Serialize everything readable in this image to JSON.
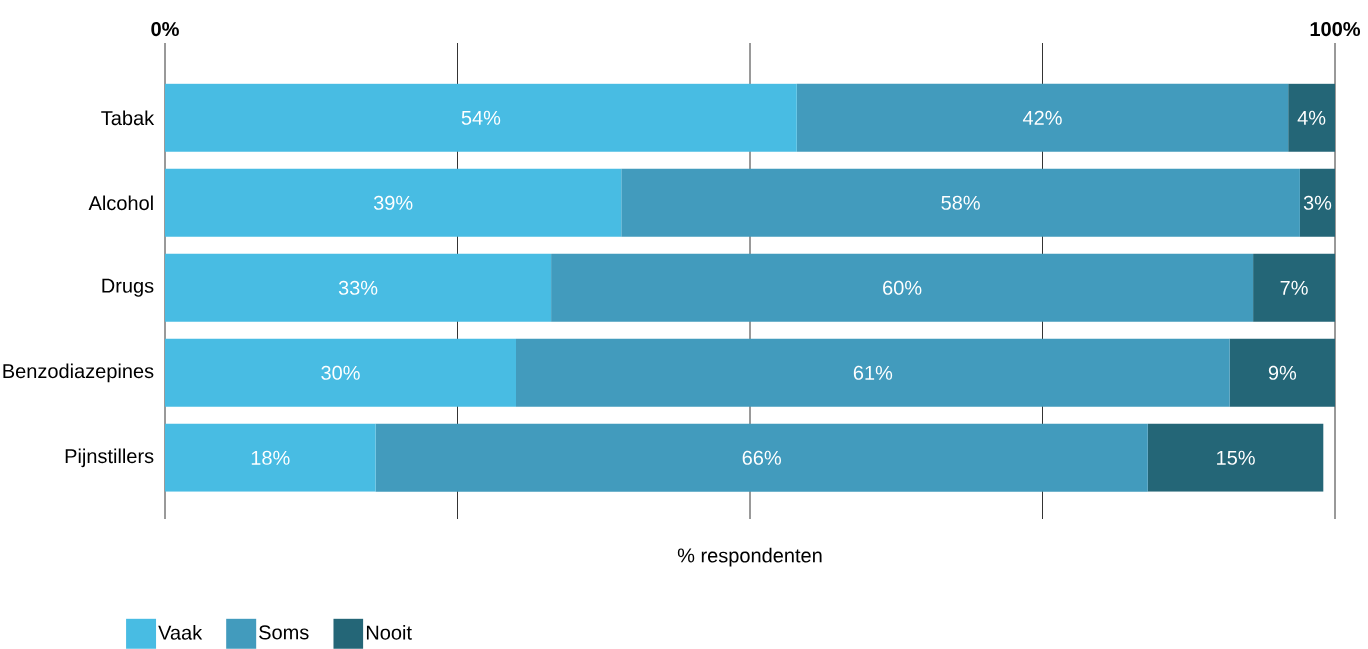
{
  "chart_data": {
    "type": "bar",
    "orientation": "horizontal",
    "stacked": true,
    "xlabel": "% respondenten",
    "categories": [
      "Tabak",
      "Alcohol",
      "Drugs",
      "Benzodiazepines",
      "Pijnstillers"
    ],
    "series": [
      {
        "name": "Vaak",
        "color": "#48bce3",
        "values": [
          54,
          39,
          33,
          30,
          18
        ],
        "value_labels": [
          "54%",
          "39%",
          "33%",
          "30%",
          "18%"
        ]
      },
      {
        "name": "Soms",
        "color": "#429bbd",
        "values": [
          42,
          58,
          60,
          61,
          66
        ],
        "value_labels": [
          "42%",
          "58%",
          "60%",
          "61%",
          "66%"
        ]
      },
      {
        "name": "Nooit",
        "color": "#246677",
        "values": [
          4,
          3,
          7,
          9,
          15
        ],
        "value_labels": [
          "4%",
          "3%",
          "7%",
          "9%",
          "15%"
        ]
      }
    ],
    "xlim": [
      0,
      100
    ],
    "xticks": [
      {
        "value": 0,
        "label": "0%"
      },
      {
        "value": 25,
        "label": null
      },
      {
        "value": 50,
        "label": null
      },
      {
        "value": 75,
        "label": null
      },
      {
        "value": 100,
        "label": "100%"
      }
    ],
    "grid": "x",
    "legend": "bottom left"
  }
}
